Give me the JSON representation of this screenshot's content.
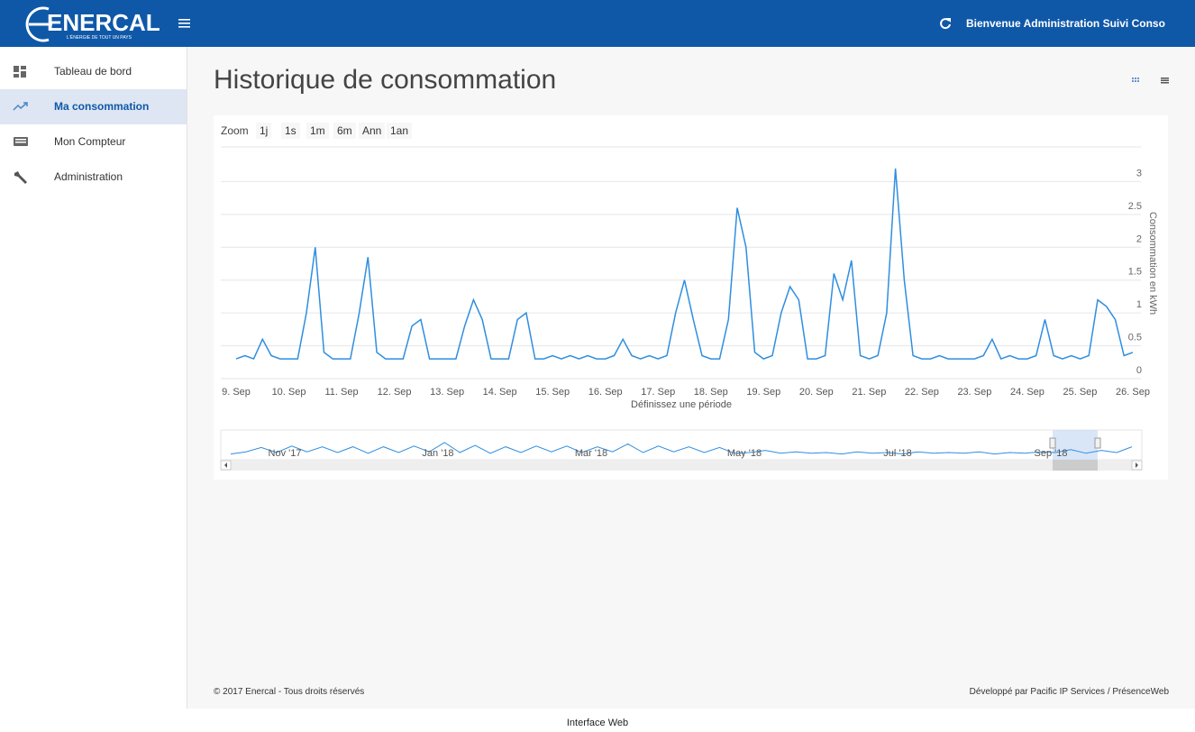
{
  "header": {
    "logo": "ENERCAL",
    "logo_tagline": "L'ÉNERGIE DE TOUT UN PAYS",
    "welcome": "Bienvenue Administration Suivi Conso"
  },
  "sidebar": {
    "items": [
      "Tableau de bord",
      "Ma consommation",
      "Mon Compteur",
      "Administration"
    ]
  },
  "page_title": "Historique de consommation",
  "chart_data": {
    "type": "line",
    "zoom_label": "Zoom",
    "zoom_buttons": [
      "1j",
      "1s",
      "1m",
      "6m",
      "Ann",
      "1an"
    ],
    "x_label": "Définissez une période",
    "y_label": "Consommation en kWh",
    "color": "#2f8ee0",
    "grid": true,
    "ylim": [
      0,
      3.5
    ],
    "yticks": [
      0,
      0.5,
      1,
      1.5,
      2,
      2.5,
      3
    ],
    "categories": [
      "9. Sep",
      null,
      null,
      null,
      null,
      null,
      "10. Sep",
      null,
      null,
      null,
      null,
      null,
      "11. Sep",
      null,
      null,
      null,
      null,
      null,
      "12. Sep",
      null,
      null,
      null,
      null,
      null,
      "13. Sep",
      null,
      null,
      null,
      null,
      null,
      "14. Sep",
      null,
      null,
      null,
      null,
      null,
      "15. Sep",
      null,
      null,
      null,
      null,
      null,
      "16. Sep",
      null,
      null,
      null,
      null,
      null,
      "17. Sep",
      null,
      null,
      null,
      null,
      null,
      "18. Sep",
      null,
      null,
      null,
      null,
      null,
      "19. Sep",
      null,
      null,
      null,
      null,
      null,
      "20. Sep",
      null,
      null,
      null,
      null,
      null,
      "21. Sep",
      null,
      null,
      null,
      null,
      null,
      "22. Sep",
      null,
      null,
      null,
      null,
      null,
      "23. Sep",
      null,
      null,
      null,
      null,
      null,
      "24. Sep",
      null,
      null,
      null,
      null,
      null,
      "25. Sep",
      null,
      null,
      null,
      null,
      null,
      "26. Sep"
    ],
    "values": [
      0.3,
      0.35,
      0.3,
      0.6,
      0.35,
      0.3,
      0.3,
      0.3,
      1.0,
      2.0,
      0.4,
      0.3,
      0.3,
      0.3,
      1.0,
      1.85,
      0.4,
      0.3,
      0.3,
      0.3,
      0.8,
      0.9,
      0.3,
      0.3,
      0.3,
      0.3,
      0.8,
      1.2,
      0.9,
      0.3,
      0.3,
      0.3,
      0.9,
      1.0,
      0.3,
      0.3,
      0.35,
      0.3,
      0.35,
      0.3,
      0.35,
      0.3,
      0.3,
      0.35,
      0.6,
      0.35,
      0.3,
      0.35,
      0.3,
      0.35,
      1.0,
      1.5,
      0.9,
      0.35,
      0.3,
      0.3,
      0.9,
      2.6,
      2.0,
      0.4,
      0.3,
      0.35,
      1.0,
      1.4,
      1.2,
      0.3,
      0.3,
      0.35,
      1.6,
      1.2,
      1.8,
      0.35,
      0.3,
      0.35,
      1.0,
      3.2,
      1.5,
      0.35,
      0.3,
      0.3,
      0.35,
      0.3,
      0.3,
      0.3,
      0.3,
      0.35,
      0.6,
      0.3,
      0.35,
      0.3,
      0.3,
      0.35,
      0.9,
      0.35,
      0.3,
      0.35,
      0.3,
      0.35,
      1.2,
      1.1,
      0.9,
      0.35,
      0.4
    ],
    "navigator": {
      "labels": [
        "Nov '17",
        "Jan '18",
        "Mar '18",
        "May '18",
        "Jul '18",
        "Sep '18"
      ],
      "values": [
        0.3,
        0.6,
        1.2,
        0.5,
        1.4,
        0.6,
        1.3,
        0.5,
        1.3,
        0.4,
        1.3,
        0.5,
        1.4,
        0.6,
        1.9,
        0.5,
        1.5,
        0.4,
        1.3,
        0.5,
        1.4,
        0.6,
        1.4,
        0.5,
        1.3,
        0.6,
        1.7,
        0.5,
        1.4,
        0.6,
        1.3,
        0.5,
        1.2,
        0.4,
        0.5,
        0.8,
        0.4,
        0.6,
        0.4,
        0.5,
        0.3,
        0.6,
        0.4,
        0.5,
        0.3,
        0.6,
        0.4,
        0.5,
        0.4,
        0.6,
        0.3,
        0.5,
        0.4,
        0.6,
        0.5,
        0.9,
        0.4,
        0.8,
        0.5,
        1.3
      ]
    }
  },
  "footer": {
    "copyright": "© 2017 Enercal - Tous droits réservés",
    "credit": "Développé par Pacific IP Services / PrésenceWeb"
  },
  "caption": "Interface Web"
}
